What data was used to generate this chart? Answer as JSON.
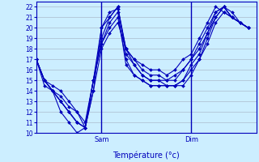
{
  "title": "Température (°c)",
  "background_color": "#cceeff",
  "grid_color": "#aabbcc",
  "line_color": "#0000bb",
  "ylim": [
    10,
    22.5
  ],
  "yticks": [
    10,
    11,
    12,
    13,
    14,
    15,
    16,
    17,
    18,
    19,
    20,
    21,
    22
  ],
  "vline_positions": [
    8,
    19
  ],
  "vline_labels": [
    "Sam",
    "Dim"
  ],
  "xlim": [
    0,
    27
  ],
  "series": [
    [
      17,
      15,
      14,
      12,
      11,
      10,
      10.5,
      15,
      20,
      21.5,
      21.8,
      18,
      17,
      16.5,
      16,
      16,
      15.5,
      16,
      17,
      17.5,
      19,
      20.5,
      22,
      21.5,
      21,
      20.5,
      20
    ],
    [
      17,
      15,
      14,
      13,
      12,
      11,
      10.5,
      14,
      20,
      21,
      22,
      18,
      17,
      16,
      15.5,
      15.5,
      15,
      15.5,
      16,
      17,
      18.5,
      20,
      21.5,
      22,
      21,
      20.5,
      20
    ],
    [
      17,
      14.5,
      14,
      13,
      12,
      11,
      10.5,
      15,
      19,
      21,
      22,
      17.5,
      16.5,
      15.5,
      15,
      15,
      15,
      15,
      16,
      17,
      18,
      19.5,
      21,
      22,
      21,
      20.5,
      20
    ],
    [
      17,
      15,
      14,
      13,
      12,
      11,
      10.5,
      15,
      18.5,
      20.5,
      21.5,
      16.5,
      15.5,
      15,
      14.5,
      14.5,
      14.5,
      14.5,
      15,
      16.5,
      17.5,
      19.5,
      21.5,
      22,
      21.5,
      20.5,
      20
    ],
    [
      17,
      15,
      14.5,
      14,
      13,
      12,
      11,
      15,
      18.5,
      20,
      21,
      17,
      15.5,
      15,
      14.5,
      14.5,
      14.5,
      14.5,
      15,
      16,
      17,
      19,
      21,
      22,
      21,
      20.5,
      20
    ],
    [
      17,
      15,
      14,
      13.5,
      12.5,
      12,
      10.5,
      14,
      18,
      19.5,
      20.5,
      18,
      16.5,
      15.5,
      15,
      15,
      14.5,
      14.5,
      14.5,
      15.5,
      17,
      18.5,
      20.5,
      21.5,
      21,
      20.5,
      20
    ]
  ]
}
